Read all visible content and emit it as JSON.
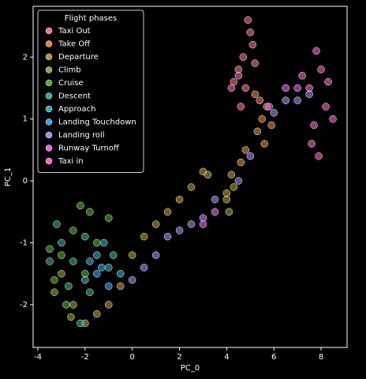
{
  "chart_data": {
    "type": "scatter",
    "xlabel": "PC_0",
    "ylabel": "PC_1",
    "xlim": [
      -4.2,
      9.1
    ],
    "ylim": [
      -2.69,
      2.82
    ],
    "xticks": [
      -4,
      -2,
      0,
      2,
      4,
      6,
      8
    ],
    "yticks": [
      -2,
      -1,
      0,
      1,
      2
    ],
    "legend_title": "Flight phases",
    "legend_loc": "upper left",
    "series": [
      {
        "name": "Taxi Out",
        "color": "#f77189",
        "x": [
          4.9,
          5.0,
          4.5,
          4.7,
          5.1,
          4.3,
          5.2,
          4.8,
          5.4,
          4.6
        ],
        "values": [
          2.6,
          2.4,
          1.8,
          2.0,
          2.2,
          1.6,
          1.9,
          1.5,
          1.3,
          1.2
        ]
      },
      {
        "name": "Take Off",
        "color": "#e18a3b",
        "x": [
          5.5,
          5.3,
          5.7,
          5.6,
          4.6,
          4.8,
          5.9,
          5.2
        ],
        "values": [
          1.0,
          0.8,
          1.2,
          0.6,
          0.3,
          0.5,
          0.9,
          1.4
        ]
      },
      {
        "name": "Departure",
        "color": "#bb9832",
        "x": [
          3.0,
          3.2,
          2.5,
          2.0,
          1.5,
          1.0,
          0.5,
          0.0,
          -0.5,
          -1.0,
          -1.5,
          4.0,
          4.2
        ],
        "values": [
          0.15,
          0.1,
          -0.1,
          -0.3,
          -0.5,
          -0.7,
          -0.9,
          -1.2,
          -1.7,
          -2.0,
          -2.15,
          -0.2,
          0.1
        ]
      },
      {
        "name": "Climb",
        "color": "#97a431",
        "x": [
          4.0,
          4.1,
          4.3,
          -3.0,
          -2.5,
          -2.0,
          -3.3,
          -2.6
        ],
        "values": [
          -0.3,
          -0.5,
          -0.1,
          -1.5,
          -2.0,
          -2.3,
          -1.8,
          -2.2
        ]
      },
      {
        "name": "Cruise",
        "color": "#50b131",
        "x": [
          -3.0,
          -2.5,
          -2.0,
          -3.3,
          -1.5,
          -2.8,
          -2.2,
          -1.0,
          -3.5,
          -1.8
        ],
        "values": [
          -1.2,
          -0.8,
          -1.5,
          -1.6,
          -1.0,
          -2.0,
          -0.4,
          -0.6,
          -1.1,
          -0.5
        ]
      },
      {
        "name": "Descent",
        "color": "#34ae91",
        "x": [
          -3.0,
          -2.5,
          -2.0,
          -3.5,
          -2.7,
          -1.8,
          -2.2,
          -3.2
        ],
        "values": [
          -1.0,
          -1.3,
          -0.9,
          -1.3,
          -1.7,
          -1.8,
          -2.3,
          -0.7
        ]
      },
      {
        "name": "Approach",
        "color": "#37abb5",
        "x": [
          -1.5,
          -1.0,
          -0.5,
          -2.0,
          -1.2,
          -0.8
        ],
        "values": [
          -1.2,
          -1.4,
          -1.5,
          -1.6,
          -1.0,
          -1.2
        ]
      },
      {
        "name": "Landing Touchdown",
        "color": "#3ba3ec",
        "x": [
          -1.5,
          -1.8,
          -1.0,
          -1.3
        ],
        "values": [
          -1.5,
          -1.3,
          -1.7,
          -1.4
        ]
      },
      {
        "name": "Landing roll",
        "color": "#a48cf4",
        "x": [
          0.0,
          0.5,
          1.0,
          1.5,
          2.0,
          2.5,
          3.0,
          3.5,
          4.5,
          5.0,
          6.0,
          6.5,
          7.0,
          7.5
        ],
        "values": [
          -1.6,
          -1.4,
          -1.2,
          -0.9,
          -0.8,
          -0.7,
          -0.6,
          -0.3,
          0.0,
          0.4,
          1.1,
          1.3,
          1.3,
          1.4
        ]
      },
      {
        "name": "Runway Turnoff",
        "color": "#e866f4",
        "x": [
          3.0,
          3.5,
          6.5,
          7.0,
          5.8
        ],
        "values": [
          -0.7,
          -0.5,
          1.5,
          1.5,
          1.2
        ]
      },
      {
        "name": "Taxi in",
        "color": "#f668c2",
        "x": [
          7.5,
          8.0,
          7.8,
          8.2,
          7.6,
          7.9,
          8.5,
          7.2,
          4.2,
          4.5,
          8.3,
          7.7
        ],
        "values": [
          1.5,
          1.8,
          2.1,
          1.2,
          0.6,
          0.4,
          1.0,
          1.7,
          1.5,
          1.7,
          1.6,
          0.9
        ]
      }
    ]
  }
}
